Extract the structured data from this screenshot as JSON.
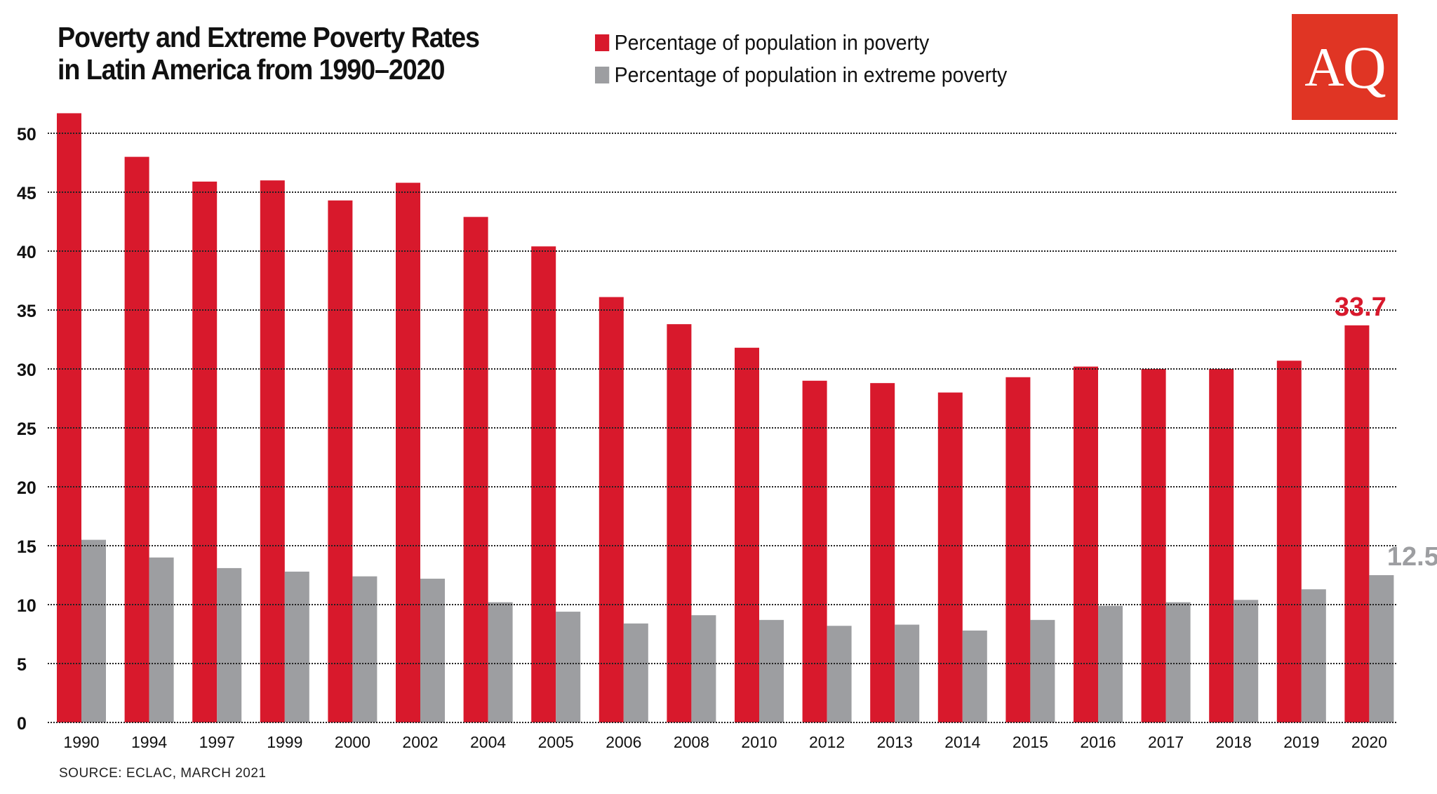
{
  "chart_data": {
    "type": "bar",
    "title": "Poverty and Extreme Poverty Rates in Latin America from 1990–2020",
    "categories": [
      "1990",
      "1994",
      "1997",
      "1999",
      "2000",
      "2002",
      "2004",
      "2005",
      "2006",
      "2008",
      "2010",
      "2012",
      "2013",
      "2014",
      "2015",
      "2016",
      "2017",
      "2018",
      "2019",
      "2020"
    ],
    "series": [
      {
        "name": "Percentage of population in poverty",
        "color": "#d8192c",
        "values": [
          51.7,
          48.0,
          45.9,
          46.0,
          44.3,
          45.8,
          42.9,
          40.4,
          36.1,
          33.8,
          31.8,
          29.0,
          28.8,
          28.0,
          29.3,
          30.2,
          30.0,
          30.0,
          30.7,
          33.7
        ]
      },
      {
        "name": "Percentage of population in extreme poverty",
        "color": "#9d9ea1",
        "values": [
          15.5,
          14.0,
          13.1,
          12.8,
          12.4,
          12.2,
          10.2,
          9.4,
          8.4,
          9.1,
          8.7,
          8.2,
          8.3,
          7.8,
          8.7,
          9.9,
          10.2,
          10.4,
          11.3,
          12.5
        ]
      }
    ],
    "ylim": [
      0,
      52
    ],
    "yticks": [
      0,
      5,
      10,
      15,
      20,
      25,
      30,
      35,
      40,
      45,
      50
    ],
    "grid": true,
    "legend_placement": "top",
    "annotations": [
      {
        "category": "2020",
        "series": 0,
        "text": "33.7"
      },
      {
        "category": "2020",
        "series": 1,
        "text": "12.5"
      }
    ]
  },
  "legend": {
    "poverty": "Percentage of population in poverty",
    "extreme": "Percentage of population in extreme poverty"
  },
  "title_line1": "Poverty and Extreme Poverty Rates",
  "title_line2": "in Latin America from 1990–2020",
  "logo_text": "AQ",
  "source": "SOURCE: ECLAC, MARCH 2021"
}
